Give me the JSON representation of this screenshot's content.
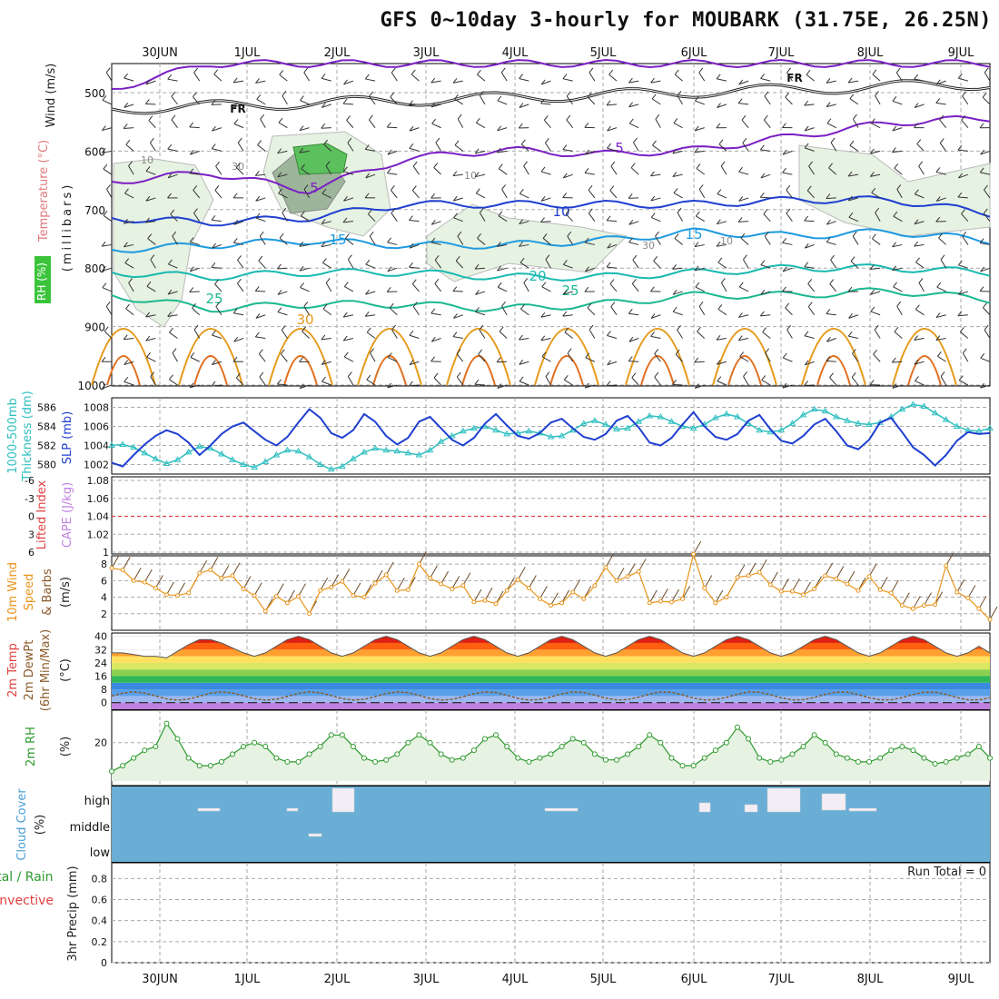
{
  "title": "GFS 0~10day 3-hourly for MOUBARK (31.75E, 26.25N)",
  "x_labels": [
    "30JUN",
    "1JUL",
    "2JUL",
    "3JUL",
    "4JUL",
    "5JUL",
    "6JUL",
    "7JUL",
    "8JUL",
    "9JUL"
  ],
  "colors": {
    "grid": "#999999",
    "pressure_isotherm_5": "#7a1fc4",
    "isotherm_10": "#1f3fd0",
    "isotherm_15": "#1e9ae0",
    "isotherm_20": "#19b9b0",
    "isotherm_25": "#1ab890",
    "isotherm_30": "#e69a1a",
    "slp": "#1f3fd0",
    "thickness": "#2fbfc0",
    "wind": "#e8941a",
    "rh": "#2e9a2e",
    "cloud": "#6aaed6",
    "cape_zero": "#e04040"
  },
  "panels": {
    "upper_air": {
      "ylabel_wind": "Wind (m/s)",
      "ylabel_temp": "Temperature (°C)",
      "ylabel_rh": "RH (%)",
      "ylabel_units": "(millibars)",
      "yticks": [
        "500",
        "600",
        "700",
        "800",
        "900",
        "1000"
      ],
      "freezing_label": "FR",
      "isotherm_labels": [
        "5",
        "5",
        "10",
        "15",
        "15",
        "20",
        "25",
        "25",
        "30"
      ],
      "rh_labels": [
        "10",
        "30",
        "10",
        "30",
        "10"
      ]
    },
    "slp": {
      "ylabel_left": "Thickness (dm)",
      "ylabel_left2": "1000-500mb",
      "ylabel_right": "SLP (mb)",
      "left_ticks": [
        "586",
        "584",
        "582",
        "580"
      ],
      "right_ticks": [
        "1008",
        "1006",
        "1004",
        "1002"
      ]
    },
    "cape": {
      "ylabel_left": "Lifted Index",
      "ylabel_right": "CAPE (J/kg)",
      "left_ticks": [
        "-6",
        "-3",
        "0",
        "3",
        "6"
      ],
      "right_ticks": [
        "1.08",
        "1.06",
        "1.04",
        "1.02",
        "1"
      ]
    },
    "wind10m": {
      "ylabel1": "10m Wind",
      "ylabel2": "Speed",
      "ylabel3": "& Barbs",
      "units": "(m/s)",
      "yticks": [
        "8",
        "6",
        "4",
        "2"
      ]
    },
    "temp2m": {
      "ylabel1": "2m Temp",
      "ylabel2": "2m DewPt",
      "ylabel3": "(6hr Min/Max)",
      "units": "(°C)",
      "yticks": [
        "40",
        "32",
        "24",
        "16",
        "8",
        "0"
      ]
    },
    "rh2m": {
      "ylabel": "2m RH",
      "units": "(%)",
      "yticks": [
        "20"
      ]
    },
    "cloud": {
      "ylabel": "Cloud Cover",
      "units": "(%)",
      "levels": [
        "high",
        "middle",
        "low"
      ]
    },
    "precip": {
      "ylabel1": "Total / Rain",
      "ylabel2": "Convective",
      "ylabel3": "3hr Precip (mm)",
      "yticks": [
        "0.8",
        "0.6",
        "0.4",
        "0.2",
        "0"
      ],
      "run_total": "Run Total = 0"
    }
  },
  "chart_data": [
    {
      "type": "line",
      "name": "SLP",
      "x_count": 81,
      "values": [
        1002.2,
        1001.8,
        1003.0,
        1004.1,
        1005.0,
        1005.6,
        1005.2,
        1004.3,
        1003.0,
        1004.0,
        1005.2,
        1006.0,
        1006.4,
        1005.5,
        1004.6,
        1004.0,
        1004.9,
        1006.4,
        1007.8,
        1006.9,
        1005.3,
        1004.8,
        1005.6,
        1007.3,
        1006.5,
        1005.0,
        1004.1,
        1004.8,
        1006.5,
        1007.0,
        1005.8,
        1004.6,
        1004.0,
        1004.8,
        1006.3,
        1007.3,
        1006.1,
        1005.0,
        1004.7,
        1005.3,
        1006.4,
        1006.8,
        1005.8,
        1004.9,
        1004.6,
        1005.2,
        1006.6,
        1007.1,
        1005.9,
        1004.3,
        1004.0,
        1004.8,
        1006.2,
        1007.5,
        1006.0,
        1004.9,
        1004.6,
        1005.2,
        1006.6,
        1007.2,
        1005.7,
        1004.5,
        1004.2,
        1005.0,
        1006.2,
        1006.8,
        1005.5,
        1004.0,
        1003.6,
        1004.6,
        1006.4,
        1006.9,
        1005.4,
        1003.8,
        1003.0,
        1001.9,
        1003.0,
        1004.5,
        1005.4,
        1005.2,
        1005.3
      ],
      "ylim": [
        1001,
        1009
      ]
    },
    {
      "type": "line",
      "name": "Thickness",
      "x_count": 81,
      "values": [
        582.0,
        582.1,
        581.8,
        581.2,
        580.6,
        580.1,
        580.5,
        581.3,
        581.9,
        581.7,
        581.1,
        580.5,
        580.0,
        579.7,
        580.3,
        581.0,
        581.5,
        581.4,
        580.8,
        580.0,
        579.5,
        579.8,
        580.6,
        581.3,
        581.7,
        581.5,
        581.4,
        581.2,
        581.0,
        581.5,
        582.4,
        583.0,
        583.5,
        583.8,
        584.0,
        583.6,
        583.2,
        583.3,
        583.5,
        583.3,
        582.9,
        583.0,
        583.6,
        584.3,
        584.6,
        584.2,
        583.7,
        583.8,
        584.5,
        585.1,
        585.0,
        584.5,
        584.0,
        583.8,
        584.2,
        584.9,
        585.3,
        585.0,
        584.3,
        583.6,
        583.4,
        583.6,
        584.3,
        585.2,
        585.8,
        585.6,
        585.0,
        584.6,
        584.3,
        584.2,
        584.4,
        585.0,
        585.8,
        586.3,
        586.1,
        585.4,
        584.7,
        584.0,
        583.6,
        583.5,
        583.8
      ],
      "ylim": [
        579,
        587
      ]
    },
    {
      "type": "line",
      "name": "10m Wind Speed",
      "x_count": 81,
      "values": [
        7.5,
        7.3,
        6.0,
        5.8,
        5.1,
        4.3,
        4.2,
        4.5,
        6.9,
        7.3,
        6.3,
        6.6,
        5.0,
        4.2,
        2.3,
        4.1,
        3.3,
        4.1,
        2.0,
        4.8,
        5.2,
        5.9,
        4.2,
        4.0,
        5.7,
        6.7,
        4.8,
        4.9,
        8.0,
        6.3,
        5.6,
        5.0,
        5.4,
        3.4,
        3.6,
        3.2,
        4.8,
        6.1,
        5.1,
        3.8,
        3.0,
        3.3,
        4.6,
        3.8,
        5.4,
        7.6,
        6.0,
        6.5,
        7.1,
        3.3,
        3.5,
        3.4,
        3.8,
        9.2,
        5.1,
        3.3,
        4.0,
        6.4,
        6.6,
        7.0,
        5.5,
        4.7,
        4.7,
        4.3,
        5.0,
        6.6,
        6.2,
        5.6,
        4.8,
        6.5,
        4.9,
        4.5,
        3.0,
        2.6,
        3.0,
        3.1,
        7.8,
        4.6,
        3.9,
        2.6,
        1.3
      ],
      "ylim": [
        0,
        9
      ]
    },
    {
      "type": "area",
      "name": "2m RH",
      "x_count": 81,
      "values": [
        5,
        8,
        12,
        16,
        18,
        30,
        22,
        12,
        8,
        8,
        10,
        14,
        18,
        20,
        18,
        12,
        10,
        10,
        14,
        18,
        24,
        24,
        18,
        12,
        10,
        11,
        14,
        20,
        24,
        20,
        14,
        11,
        12,
        16,
        22,
        24,
        18,
        12,
        10,
        12,
        14,
        18,
        22,
        20,
        14,
        11,
        11,
        14,
        18,
        24,
        20,
        12,
        8,
        8,
        12,
        16,
        20,
        28,
        22,
        12,
        10,
        11,
        14,
        18,
        24,
        20,
        14,
        12,
        10,
        10,
        12,
        16,
        18,
        16,
        12,
        9,
        10,
        12,
        14,
        18,
        12
      ],
      "ylim": [
        0,
        35
      ]
    },
    {
      "type": "area",
      "name": "2m Temp",
      "x_count": 81,
      "values": [
        30,
        30,
        29,
        28,
        28,
        27,
        31,
        35,
        38,
        38,
        36,
        33,
        30,
        28,
        30,
        34,
        38,
        40,
        38,
        34,
        30,
        28,
        30,
        34,
        38,
        40,
        38,
        34,
        30,
        28,
        30,
        34,
        38,
        40,
        38,
        34,
        30,
        28,
        30,
        34,
        38,
        40,
        38,
        34,
        30,
        28,
        30,
        34,
        38,
        40,
        38,
        34,
        30,
        28,
        30,
        34,
        38,
        40,
        38,
        34,
        30,
        28,
        30,
        34,
        38,
        40,
        38,
        34,
        30,
        28,
        30,
        34,
        38,
        40,
        38,
        34,
        30,
        28,
        30,
        34,
        30
      ],
      "ylim": [
        -4,
        42
      ]
    },
    {
      "type": "bar",
      "name": "Cloud Cover high",
      "categories": [
        "2JUL",
        "6JUL",
        "7JUL",
        "8JUL"
      ],
      "values": [
        90,
        40,
        95,
        70
      ],
      "ylim": [
        0,
        100
      ]
    }
  ]
}
